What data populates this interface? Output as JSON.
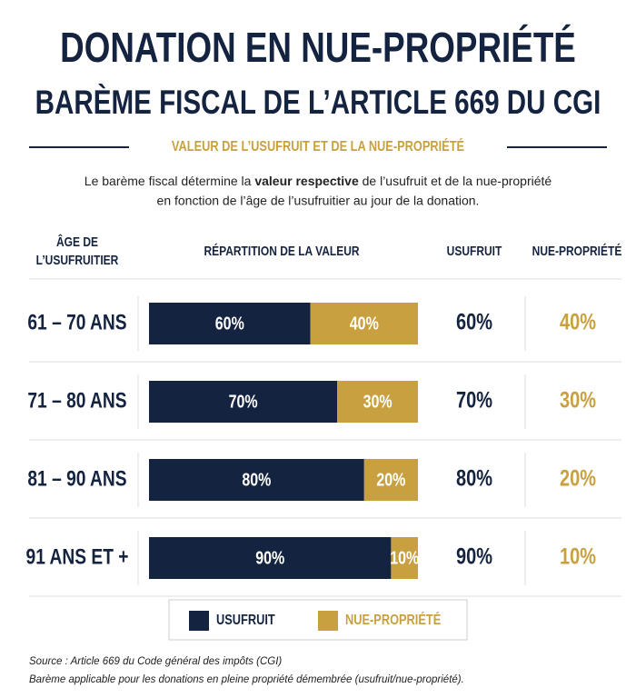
{
  "chart_data": {
    "type": "stacked-bar",
    "title": "DONATION EN NUE-PROPRIÉTÉ",
    "subtitle": "BARÈME FISCAL DE L’ARTICLE 669 DU CGI",
    "section": "VALEUR DE L’USUFRUIT ET DE LA NUE-PROPRIÉTÉ",
    "intro": [
      "Le barème fiscal détermine la ",
      "valeur respective",
      " de l’usufruit et de la nue-propriété",
      "en fonction de l’âge de l’usufruitier au jour de la donation."
    ],
    "age_header": [
      "ÂGE DE",
      "L’USUFRUITIER"
    ],
    "columns": [
      "RÉPARTITION DE LA VALEUR",
      "USUFRUIT",
      "NUE-PROPRIÉTÉ"
    ],
    "categories": [
      "61 – 70 ANS",
      "71 – 80 ANS",
      "81 – 90 ANS",
      "91 ANS ET +"
    ],
    "series": [
      {
        "name": "USUFRUIT",
        "color": "#14233f",
        "values": [
          60,
          70,
          80,
          90
        ],
        "value_labels": [
          "60%",
          "70%",
          "80%",
          "90%"
        ]
      },
      {
        "name": "NUE-PROPRIÉTÉ",
        "color": "#c9a03f",
        "values": [
          40,
          30,
          20,
          10
        ],
        "value_labels": [
          "40%",
          "30%",
          "20%",
          "10%"
        ]
      }
    ],
    "xlim": [
      0,
      100
    ],
    "notes": [
      "Source : Article 669 du Code général des impôts (CGI)",
      "Barème applicable pour les donations en pleine propriété démembrée (usufruit/nue-propriété)."
    ]
  }
}
